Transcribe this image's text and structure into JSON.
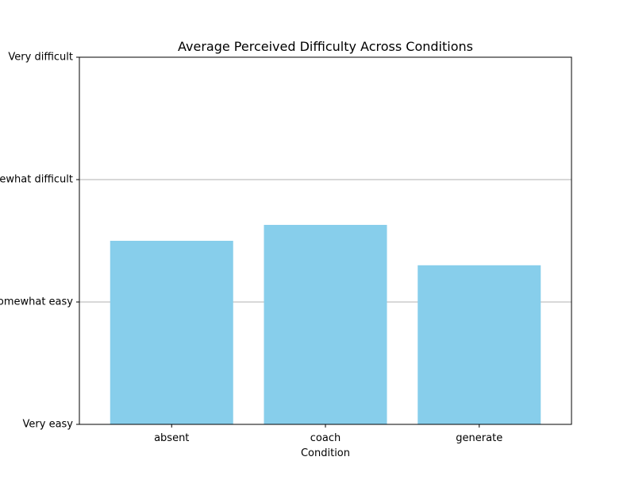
{
  "chart_data": {
    "type": "bar",
    "title": "Average Perceived Difficulty Across Conditions",
    "xlabel": "Condition",
    "ylabel": "",
    "categories": [
      "absent",
      "coach",
      "generate"
    ],
    "values": [
      2.5,
      2.63,
      2.3
    ],
    "ylim": [
      1,
      4
    ],
    "yticks": [
      {
        "value": 1,
        "label": "Very easy"
      },
      {
        "value": 2,
        "label": "Somewhat easy"
      },
      {
        "value": 3,
        "label": "Somewhat difficult"
      },
      {
        "value": 4,
        "label": "Very difficult"
      }
    ],
    "grid": "y-major",
    "legend": "none",
    "bar_color": "#87CEEB",
    "grid_color": "#b0b0b0",
    "axis_color": "#000000"
  }
}
